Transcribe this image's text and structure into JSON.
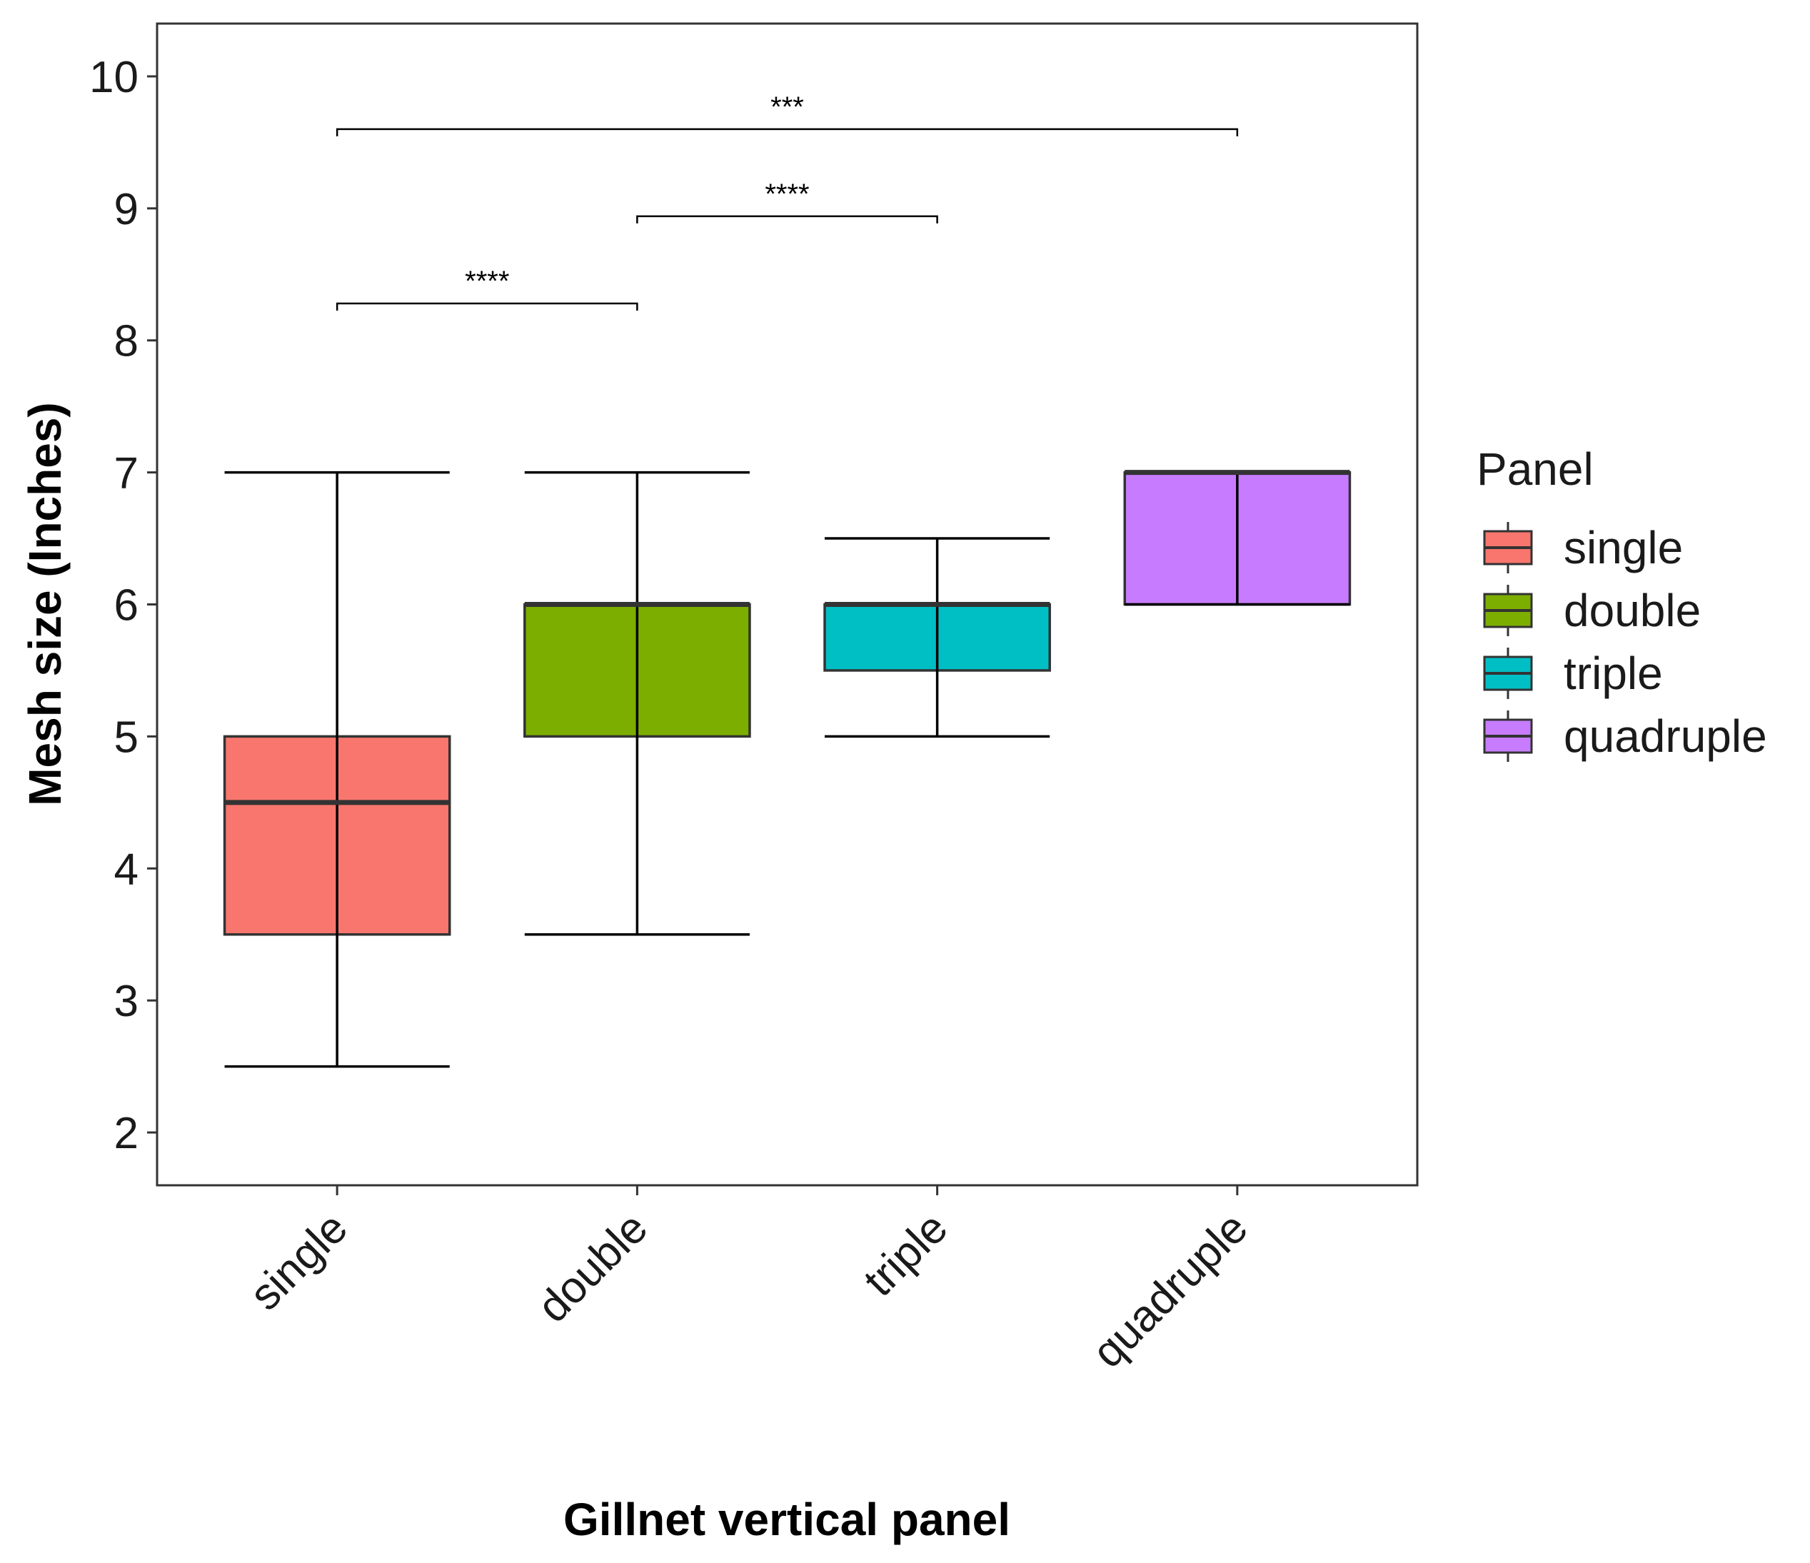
{
  "chart_data": {
    "type": "box",
    "title": "",
    "xlabel": "Gillnet vertical panel",
    "ylabel": "Mesh size (Inches)",
    "ylim": [
      1.6,
      10.4
    ],
    "yticks": [
      2,
      3,
      4,
      5,
      6,
      7,
      8,
      9,
      10
    ],
    "yticklabels": [
      "2",
      "3",
      "4",
      "5",
      "6",
      "7",
      "8",
      "9",
      "10"
    ],
    "categories": [
      "single",
      "double",
      "triple",
      "quadruple"
    ],
    "boxes": [
      {
        "category": "single",
        "min": 2.5,
        "q1": 3.5,
        "median": 4.5,
        "q3": 5.0,
        "max": 7.0,
        "color": "#F8766D"
      },
      {
        "category": "double",
        "min": 3.5,
        "q1": 5.0,
        "median": 6.0,
        "q3": 6.0,
        "max": 7.0,
        "color": "#7CAE00"
      },
      {
        "category": "triple",
        "min": 5.0,
        "q1": 5.5,
        "median": 6.0,
        "q3": 6.0,
        "max": 6.5,
        "color": "#00BFC4"
      },
      {
        "category": "quadruple",
        "min": 6.0,
        "q1": 6.0,
        "median": 7.0,
        "q3": 7.0,
        "max": 7.0,
        "color": "#C77CFF"
      }
    ],
    "significance": [
      {
        "from": "single",
        "to": "double",
        "y": 8.28,
        "label": "****"
      },
      {
        "from": "double",
        "to": "triple",
        "y": 8.94,
        "label": "****"
      },
      {
        "from": "single",
        "to": "quadruple",
        "y": 9.6,
        "label": "***"
      }
    ],
    "legend": {
      "title": "Panel",
      "position": "right",
      "entries": [
        {
          "label": "single",
          "color": "#F8766D"
        },
        {
          "label": "double",
          "color": "#7CAE00"
        },
        {
          "label": "triple",
          "color": "#00BFC4"
        },
        {
          "label": "quadruple",
          "color": "#C77CFF"
        }
      ]
    },
    "grid": false
  }
}
